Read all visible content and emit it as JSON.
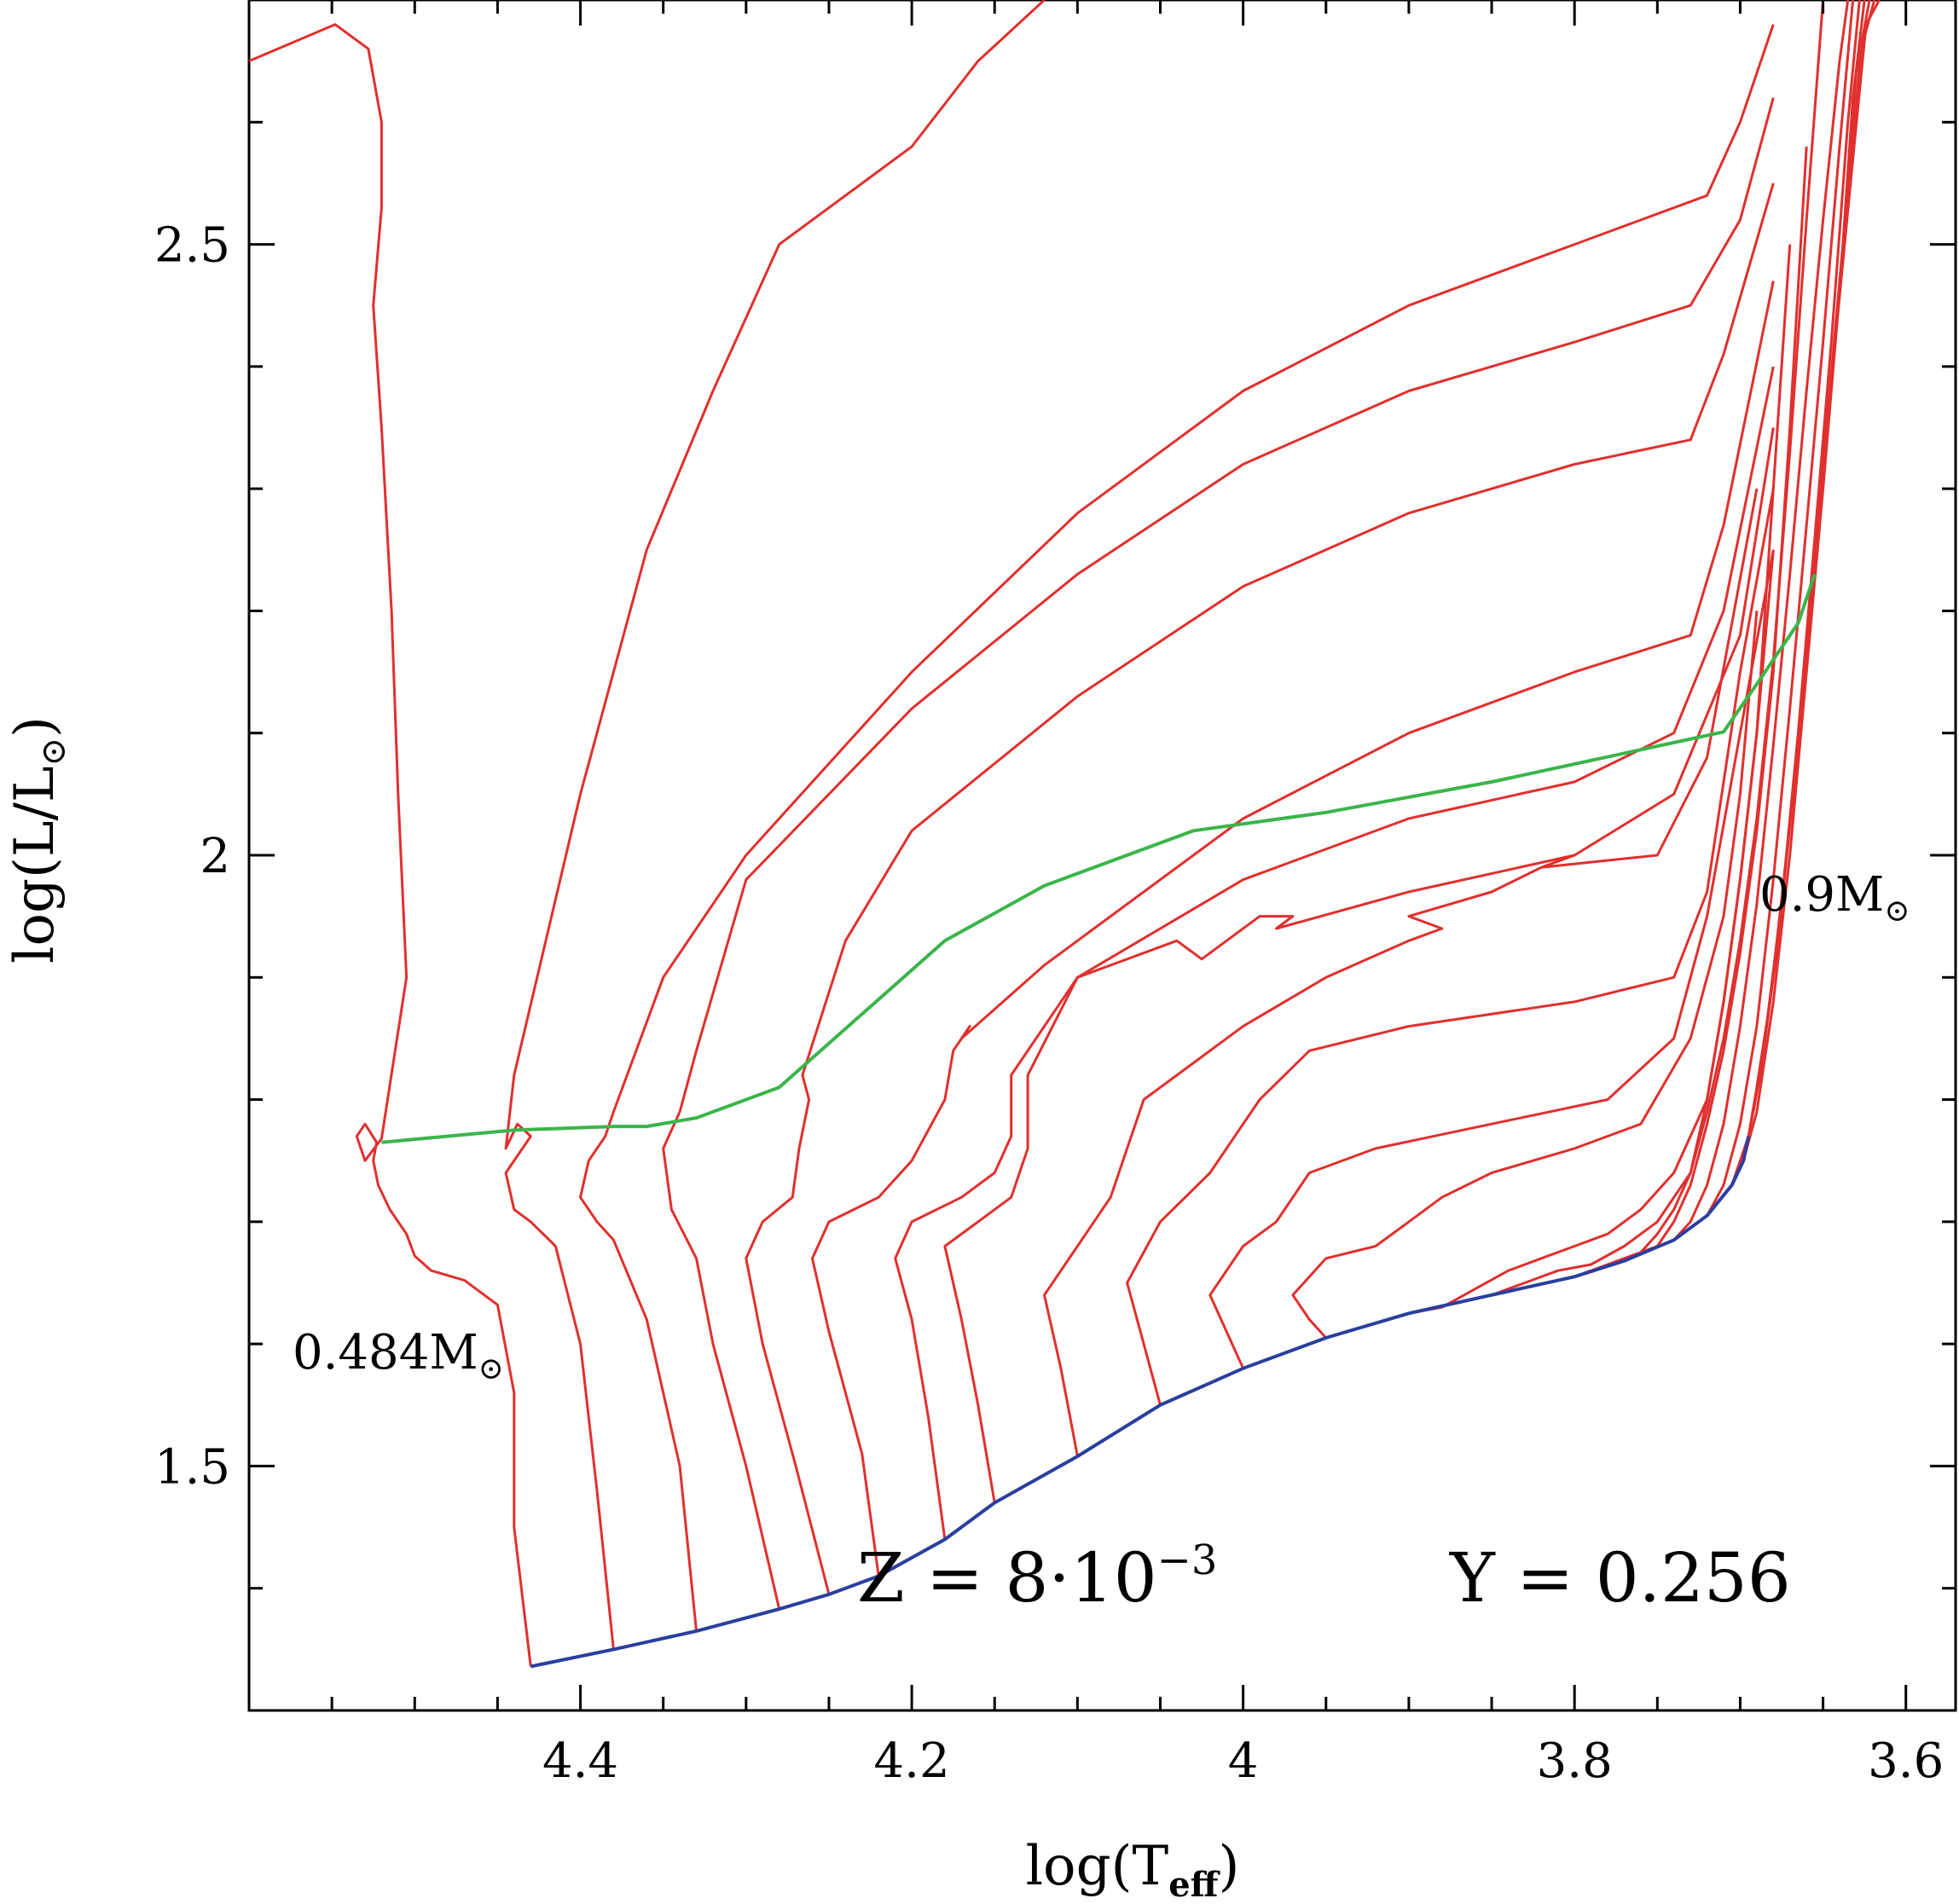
{
  "chart_data": {
    "type": "line",
    "title": "",
    "xlabel": "log(T",
    "xlabel_sub": "eff",
    "ylabel": "log(L/L",
    "ylabel_sub": "⊙",
    "xlim": [
      4.6,
      3.57
    ],
    "ylim": [
      1.3,
      2.7
    ],
    "x_reversed": true,
    "grid": false,
    "x_ticks": [
      {
        "value": 4.4,
        "label": "4.4"
      },
      {
        "value": 4.2,
        "label": "4.2"
      },
      {
        "value": 4.0,
        "label": "4"
      },
      {
        "value": 3.8,
        "label": "3.8"
      },
      {
        "value": 3.6,
        "label": "3.6"
      }
    ],
    "x_minor_ticks": [
      4.55,
      4.5,
      4.45,
      4.35,
      4.3,
      4.25,
      4.15,
      4.1,
      4.05,
      3.95,
      3.9,
      3.85,
      3.75,
      3.7,
      3.65
    ],
    "y_ticks": [
      {
        "value": 1.5,
        "label": "1.5"
      },
      {
        "value": 2.0,
        "label": "2"
      },
      {
        "value": 2.5,
        "label": "2.5"
      }
    ],
    "y_minor_ticks": [
      1.4,
      1.6,
      1.7,
      1.8,
      1.9,
      2.1,
      2.2,
      2.3,
      2.4,
      2.6
    ],
    "annotations": {
      "composition_z": "Z = 8·10",
      "composition_z_exp": "−3",
      "composition_y": "Y = 0.256",
      "low_mass_label": "0.484M",
      "high_mass_label": "0.9M",
      "sun_symbol": "⊙"
    },
    "colors": {
      "tracks": "#e0302e",
      "zahb": "#2a3f9e",
      "locus": "#3ab54a",
      "axes": "#000000"
    },
    "zahb": {
      "name": "",
      "x": [
        4.43,
        4.38,
        4.33,
        4.28,
        4.25,
        4.22,
        4.18,
        4.15,
        4.1,
        4.05,
        4.0,
        3.95,
        3.9,
        3.85,
        3.8,
        3.77,
        3.74,
        3.72,
        3.705,
        3.698,
        3.695
      ],
      "y": [
        1.336,
        1.35,
        1.365,
        1.383,
        1.395,
        1.41,
        1.44,
        1.47,
        1.508,
        1.55,
        1.58,
        1.605,
        1.625,
        1.64,
        1.655,
        1.668,
        1.685,
        1.705,
        1.73,
        1.75,
        1.77
      ]
    },
    "locus": {
      "name": "",
      "x": [
        4.52,
        4.44,
        4.38,
        4.36,
        4.33,
        4.28,
        4.18,
        4.12,
        4.03,
        3.95,
        3.85,
        3.71,
        3.69,
        3.665,
        3.655
      ],
      "y": [
        1.765,
        1.775,
        1.778,
        1.778,
        1.785,
        1.81,
        1.93,
        1.975,
        2.02,
        2.035,
        2.06,
        2.101,
        2.14,
        2.19,
        2.23
      ]
    },
    "series": [
      {
        "x": [
          4.43,
          4.44,
          4.44,
          4.45,
          4.47,
          4.49,
          4.5,
          4.505,
          4.515,
          4.522,
          4.525,
          4.523,
          4.53,
          4.535,
          4.53,
          4.52,
          4.505,
          4.51,
          4.514,
          4.52,
          4.525,
          4.52,
          4.52,
          4.528,
          4.548,
          4.6
        ],
        "y": [
          1.336,
          1.45,
          1.56,
          1.632,
          1.652,
          1.66,
          1.672,
          1.69,
          1.71,
          1.73,
          1.75,
          1.765,
          1.78,
          1.77,
          1.75,
          1.768,
          1.9,
          2.05,
          2.2,
          2.35,
          2.45,
          2.53,
          2.6,
          2.66,
          2.68,
          2.65
        ]
      },
      {
        "x": [
          4.38,
          4.39,
          4.4,
          4.415,
          4.43,
          4.44,
          4.445,
          4.43,
          4.438,
          4.445,
          4.44,
          4.4,
          4.36,
          4.32,
          4.28,
          4.2,
          4.16,
          4.12
        ],
        "y": [
          1.35,
          1.48,
          1.6,
          1.68,
          1.7,
          1.71,
          1.74,
          1.77,
          1.78,
          1.76,
          1.82,
          2.05,
          2.25,
          2.38,
          2.5,
          2.58,
          2.65,
          2.72
        ]
      },
      {
        "x": [
          4.33,
          4.34,
          4.36,
          4.38,
          4.39,
          4.4,
          4.395,
          4.385,
          4.38,
          4.35,
          4.3,
          4.2,
          4.1,
          4.0,
          3.9,
          3.8,
          3.72,
          3.7,
          3.68
        ],
        "y": [
          1.365,
          1.5,
          1.62,
          1.685,
          1.7,
          1.72,
          1.75,
          1.77,
          1.79,
          1.9,
          2.0,
          2.15,
          2.28,
          2.38,
          2.45,
          2.5,
          2.54,
          2.6,
          2.68
        ]
      },
      {
        "x": [
          4.28,
          4.3,
          4.32,
          4.33,
          4.345,
          4.35,
          4.34,
          4.33,
          4.3,
          4.2,
          4.1,
          4.0,
          3.9,
          3.8,
          3.73,
          3.7,
          3.68
        ],
        "y": [
          1.383,
          1.5,
          1.6,
          1.67,
          1.71,
          1.76,
          1.79,
          1.84,
          1.98,
          2.12,
          2.23,
          2.32,
          2.38,
          2.42,
          2.45,
          2.52,
          2.62
        ]
      },
      {
        "x": [
          4.25,
          4.27,
          4.29,
          4.3,
          4.29,
          4.272,
          4.268,
          4.262,
          4.266,
          4.24,
          4.2,
          4.1,
          4.0,
          3.9,
          3.8,
          3.73,
          3.71,
          3.68
        ],
        "y": [
          1.395,
          1.5,
          1.6,
          1.67,
          1.7,
          1.72,
          1.76,
          1.8,
          1.82,
          1.93,
          2.02,
          2.13,
          2.22,
          2.28,
          2.32,
          2.34,
          2.41,
          2.55
        ]
      },
      {
        "x": [
          4.22,
          4.23,
          4.25,
          4.26,
          4.25,
          4.22,
          4.2,
          4.18,
          4.175,
          4.165,
          4.17,
          4.12,
          4.0,
          3.9,
          3.8,
          3.73,
          3.71,
          3.68
        ],
        "y": [
          1.41,
          1.51,
          1.61,
          1.67,
          1.7,
          1.72,
          1.75,
          1.8,
          1.84,
          1.86,
          1.85,
          1.91,
          2.03,
          2.1,
          2.15,
          2.18,
          2.27,
          2.47
        ]
      },
      {
        "x": [
          4.18,
          4.19,
          4.2,
          4.21,
          4.2,
          4.17,
          4.15,
          4.14,
          4.14,
          4.1,
          4.0,
          3.9,
          3.8,
          3.74,
          3.71,
          3.68
        ],
        "y": [
          1.44,
          1.54,
          1.62,
          1.67,
          1.7,
          1.72,
          1.74,
          1.77,
          1.82,
          1.9,
          1.98,
          2.03,
          2.06,
          2.1,
          2.2,
          2.4
        ]
      },
      {
        "x": [
          4.15,
          4.16,
          4.17,
          4.18,
          4.16,
          4.14,
          4.13,
          4.13,
          4.1,
          4.04,
          4.03,
          4.025,
          4.01,
          3.99,
          3.97,
          3.98,
          3.9,
          3.8,
          3.74,
          3.7,
          3.68
        ],
        "y": [
          1.47,
          1.55,
          1.62,
          1.68,
          1.7,
          1.72,
          1.76,
          1.82,
          1.9,
          1.93,
          1.92,
          1.915,
          1.93,
          1.95,
          1.95,
          1.94,
          1.97,
          2.0,
          2.05,
          2.18,
          2.35
        ]
      },
      {
        "x": [
          4.1,
          4.11,
          4.12,
          4.1,
          4.08,
          4.07,
          4.06,
          4.0,
          3.95,
          3.9,
          3.88,
          3.9,
          3.85,
          3.82,
          3.8,
          3.82,
          3.75,
          3.72,
          3.69
        ],
        "y": [
          1.508,
          1.58,
          1.64,
          1.68,
          1.72,
          1.76,
          1.8,
          1.86,
          1.9,
          1.93,
          1.94,
          1.95,
          1.97,
          1.99,
          2.0,
          1.99,
          2.0,
          2.08,
          2.3
        ]
      },
      {
        "x": [
          4.05,
          4.06,
          4.07,
          4.05,
          4.02,
          4.0,
          3.99,
          3.96,
          3.9,
          3.8,
          3.74,
          3.72,
          3.7,
          3.68
        ],
        "y": [
          1.55,
          1.6,
          1.65,
          1.7,
          1.74,
          1.78,
          1.8,
          1.84,
          1.86,
          1.88,
          1.9,
          1.97,
          2.15,
          2.3
        ]
      },
      {
        "x": [
          4.0,
          4.01,
          4.02,
          4.0,
          3.98,
          3.96,
          3.92,
          3.85,
          3.78,
          3.74,
          3.72,
          3.7,
          3.68
        ],
        "y": [
          1.58,
          1.61,
          1.64,
          1.68,
          1.7,
          1.74,
          1.76,
          1.78,
          1.8,
          1.85,
          1.95,
          2.1,
          2.25
        ]
      },
      {
        "x": [
          3.95,
          3.96,
          3.97,
          3.95,
          3.92,
          3.9,
          3.88,
          3.85,
          3.8,
          3.76,
          3.73,
          3.71,
          3.7,
          3.69
        ],
        "y": [
          1.605,
          1.62,
          1.64,
          1.67,
          1.68,
          1.7,
          1.72,
          1.74,
          1.76,
          1.78,
          1.85,
          1.95,
          2.05,
          2.2
        ]
      },
      {
        "x": [
          3.9,
          3.88,
          3.86,
          3.84,
          3.82,
          3.8,
          3.78,
          3.76,
          3.74,
          3.72,
          3.71,
          3.7,
          3.69,
          3.68
        ],
        "y": [
          1.625,
          1.63,
          1.645,
          1.66,
          1.67,
          1.68,
          1.69,
          1.71,
          1.74,
          1.8,
          1.88,
          1.98,
          2.1,
          2.25
        ]
      },
      {
        "x": [
          3.85,
          3.83,
          3.81,
          3.79,
          3.77,
          3.75,
          3.73,
          3.72,
          3.71,
          3.7,
          3.69,
          3.68,
          3.67
        ],
        "y": [
          1.64,
          1.65,
          1.66,
          1.665,
          1.68,
          1.7,
          1.74,
          1.8,
          1.88,
          1.98,
          2.1,
          2.3,
          2.5
        ]
      },
      {
        "x": [
          3.8,
          3.78,
          3.76,
          3.75,
          3.74,
          3.73,
          3.72,
          3.71,
          3.7,
          3.69,
          3.68,
          3.67,
          3.66
        ],
        "y": [
          1.655,
          1.665,
          1.675,
          1.68,
          1.7,
          1.73,
          1.78,
          1.84,
          1.92,
          2.02,
          2.15,
          2.35,
          2.58
        ]
      },
      {
        "x": [
          3.77,
          3.76,
          3.75,
          3.74,
          3.73,
          3.72,
          3.71,
          3.7,
          3.69,
          3.68,
          3.67,
          3.66,
          3.65
        ],
        "y": [
          1.668,
          1.675,
          1.69,
          1.71,
          1.74,
          1.79,
          1.85,
          1.93,
          2.03,
          2.16,
          2.33,
          2.52,
          2.7
        ]
      },
      {
        "x": [
          3.74,
          3.73,
          3.72,
          3.71,
          3.7,
          3.69,
          3.68,
          3.67,
          3.66,
          3.65,
          3.64,
          3.635
        ],
        "y": [
          1.685,
          1.7,
          1.73,
          1.78,
          1.86,
          1.96,
          2.09,
          2.23,
          2.38,
          2.52,
          2.65,
          2.72
        ]
      },
      {
        "x": [
          3.72,
          3.71,
          3.7,
          3.69,
          3.68,
          3.67,
          3.66,
          3.65,
          3.64,
          3.632
        ],
        "y": [
          1.705,
          1.73,
          1.78,
          1.86,
          1.98,
          2.12,
          2.27,
          2.42,
          2.58,
          2.72
        ]
      },
      {
        "x": [
          3.705,
          3.695,
          3.685,
          3.675,
          3.665,
          3.655,
          3.645,
          3.635,
          3.628
        ],
        "y": [
          1.73,
          1.77,
          1.85,
          1.96,
          2.1,
          2.26,
          2.42,
          2.6,
          2.72
        ]
      },
      {
        "x": [
          3.698,
          3.69,
          3.68,
          3.67,
          3.66,
          3.65,
          3.64,
          3.632,
          3.625
        ],
        "y": [
          1.75,
          1.79,
          1.88,
          2.0,
          2.15,
          2.3,
          2.46,
          2.62,
          2.72
        ]
      },
      {
        "x": [
          3.695,
          3.688,
          3.678,
          3.668,
          3.658,
          3.648,
          3.638,
          3.63,
          3.622
        ],
        "y": [
          1.77,
          1.82,
          1.92,
          2.05,
          2.2,
          2.35,
          2.5,
          2.64,
          2.72
        ]
      },
      {
        "x": [
          3.692,
          3.685,
          3.675,
          3.665,
          3.655,
          3.645,
          3.635,
          3.627,
          3.619
        ],
        "y": [
          1.79,
          1.85,
          1.96,
          2.09,
          2.24,
          2.39,
          2.54,
          2.66,
          2.72
        ]
      },
      {
        "x": [
          3.69,
          3.682,
          3.672,
          3.662,
          3.652,
          3.642,
          3.632,
          3.624,
          3.616
        ],
        "y": [
          1.81,
          1.88,
          2.0,
          2.13,
          2.28,
          2.43,
          2.57,
          2.68,
          2.72
        ]
      }
    ]
  }
}
